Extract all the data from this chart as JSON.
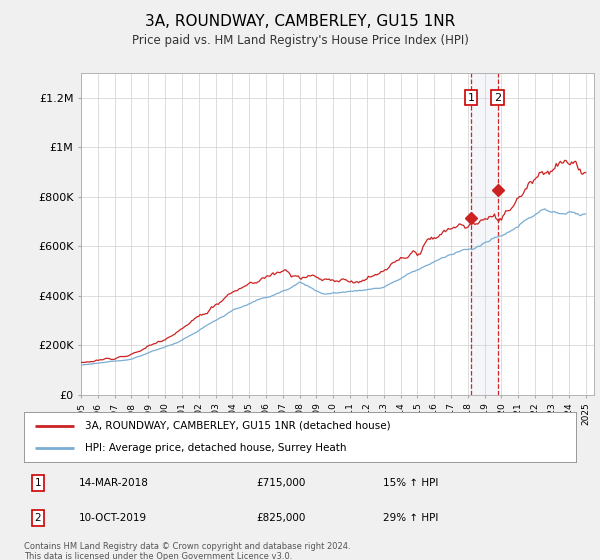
{
  "title": "3A, ROUNDWAY, CAMBERLEY, GU15 1NR",
  "subtitle": "Price paid vs. HM Land Registry's House Price Index (HPI)",
  "legend_line1": "3A, ROUNDWAY, CAMBERLEY, GU15 1NR (detached house)",
  "legend_line2": "HPI: Average price, detached house, Surrey Heath",
  "annotation1_label": "1",
  "annotation1_date": "14-MAR-2018",
  "annotation1_price": "£715,000",
  "annotation1_hpi": "15% ↑ HPI",
  "annotation1_year": 2018.2,
  "annotation1_value": 715000,
  "annotation2_label": "2",
  "annotation2_date": "10-OCT-2019",
  "annotation2_price": "£825,000",
  "annotation2_hpi": "29% ↑ HPI",
  "annotation2_year": 2019.78,
  "annotation2_value": 825000,
  "footer": "Contains HM Land Registry data © Crown copyright and database right 2024.\nThis data is licensed under the Open Government Licence v3.0.",
  "hpi_color": "#7aadd4",
  "price_color": "#cc2222",
  "background_color": "#f0f0f0",
  "plot_background": "#ffffff",
  "ylim": [
    0,
    1300000
  ],
  "xlim_start": 1995,
  "xlim_end": 2025.5,
  "yticks": [
    0,
    200000,
    400000,
    600000,
    800000,
    1000000,
    1200000
  ],
  "ytick_labels": [
    "£0",
    "£200K",
    "£400K",
    "£600K",
    "£800K",
    "£1M",
    "£1.2M"
  ]
}
